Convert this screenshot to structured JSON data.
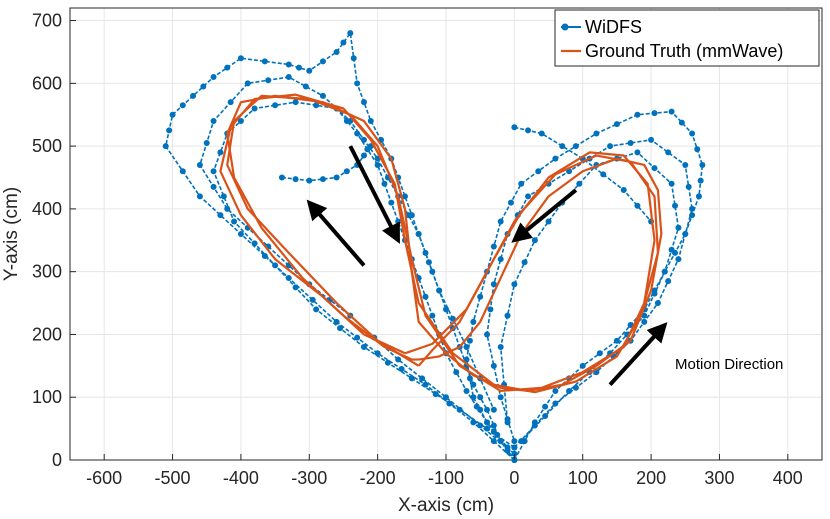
{
  "chart_data": {
    "type": "line",
    "title": "",
    "xlabel": "X-axis (cm)",
    "ylabel": "Y-axis (cm)",
    "xlim": [
      -650,
      450
    ],
    "ylim": [
      0,
      720
    ],
    "xticks": [
      -600,
      -500,
      -400,
      -300,
      -200,
      -100,
      0,
      100,
      200,
      300,
      400
    ],
    "yticks": [
      0,
      100,
      200,
      300,
      400,
      500,
      600,
      700
    ],
    "grid": true,
    "legend_position": "top-right",
    "legend": [
      "WiDFS",
      "Ground Truth (mmWave)"
    ],
    "colors": {
      "widfs": "#0072BD",
      "ground_truth": "#D95319"
    },
    "annotation": "Motion Direction",
    "series": [
      {
        "name": "WiDFS",
        "style": "dotted-marker",
        "x": [
          0,
          -60,
          -130,
          -200,
          -260,
          -330,
          -400,
          -460,
          -510,
          -500,
          -470,
          -440,
          -400,
          -330,
          -300,
          -260,
          -240,
          -230,
          -210,
          -180,
          -160,
          -140,
          -120,
          -100,
          -80,
          -60,
          -40,
          -20,
          0
        ],
        "y": [
          0,
          60,
          120,
          170,
          220,
          290,
          360,
          420,
          500,
          550,
          580,
          610,
          640,
          630,
          620,
          650,
          680,
          600,
          540,
          480,
          420,
          360,
          300,
          240,
          180,
          120,
          80,
          30,
          0
        ]
      },
      {
        "name": "WiDFS",
        "style": "dotted-marker",
        "x": [
          0,
          -80,
          -150,
          -220,
          -290,
          -350,
          -410,
          -440,
          -420,
          -380,
          -320,
          -260,
          -230,
          -200,
          -180,
          -160,
          -140,
          -120,
          -100,
          -70,
          -40,
          -10
        ],
        "y": [
          20,
          80,
          130,
          180,
          240,
          310,
          380,
          460,
          520,
          560,
          570,
          560,
          520,
          470,
          410,
          350,
          290,
          230,
          170,
          110,
          60,
          20
        ]
      },
      {
        "name": "WiDFS",
        "style": "dotted-marker",
        "x": [
          0,
          -100,
          -170,
          -240,
          -300,
          -360,
          -420,
          -460,
          -440,
          -390,
          -330,
          -280,
          -240,
          -200,
          -170,
          -140,
          -110,
          -70,
          -30
        ],
        "y": [
          10,
          100,
          160,
          230,
          280,
          340,
          400,
          470,
          540,
          600,
          610,
          580,
          540,
          480,
          420,
          360,
          270,
          180,
          80
        ]
      },
      {
        "name": "WiDFS",
        "style": "dotted-marker",
        "x": [
          -340,
          -300,
          -260,
          -230,
          -210
        ],
        "y": [
          450,
          445,
          450,
          470,
          500
        ]
      },
      {
        "name": "WiDFS",
        "style": "dotted-marker",
        "x": [
          0,
          30,
          60,
          100,
          150,
          190,
          220,
          250,
          270,
          275,
          260,
          230,
          180,
          120,
          60,
          10,
          -20,
          -40,
          -60,
          -70,
          -60,
          -40,
          -20,
          0
        ],
        "y": [
          0,
          60,
          110,
          150,
          190,
          240,
          300,
          360,
          420,
          470,
          520,
          555,
          550,
          520,
          480,
          440,
          380,
          300,
          220,
          160,
          100,
          60,
          30,
          0
        ]
      },
      {
        "name": "WiDFS",
        "style": "dotted-marker",
        "x": [
          0,
          60,
          120,
          170,
          210,
          240,
          260,
          250,
          200,
          140,
          80,
          20,
          -10,
          -30,
          -40,
          -20,
          0
        ],
        "y": [
          20,
          90,
          140,
          190,
          250,
          320,
          400,
          470,
          510,
          500,
          460,
          420,
          360,
          280,
          200,
          100,
          30
        ]
      },
      {
        "name": "WiDFS",
        "style": "dotted-marker",
        "x": [
          10,
          80,
          140,
          190,
          220,
          240,
          230,
          180,
          120,
          70,
          30,
          0,
          -20,
          -10
        ],
        "y": [
          30,
          110,
          170,
          230,
          300,
          370,
          440,
          490,
          470,
          410,
          350,
          280,
          180,
          60
        ]
      },
      {
        "name": "WiDFS",
        "style": "dotted-marker",
        "x": [
          0,
          40,
          100,
          160,
          200
        ],
        "y": [
          530,
          520,
          480,
          430,
          380
        ]
      },
      {
        "name": "Ground Truth (mmWave)",
        "style": "line",
        "x": [
          -150,
          -190,
          -250,
          -310,
          -370,
          -410,
          -420,
          -400,
          -350,
          -280,
          -220,
          -180,
          -160,
          -150,
          -140,
          -100,
          -60,
          -20,
          20,
          70,
          120,
          170,
          200,
          215,
          210,
          190,
          150,
          100,
          50,
          10,
          -20,
          -50,
          -80,
          -110,
          -140,
          -150
        ],
        "y": [
          160,
          180,
          230,
          290,
          370,
          450,
          520,
          570,
          580,
          570,
          540,
          480,
          400,
          300,
          220,
          170,
          135,
          115,
          110,
          120,
          150,
          190,
          270,
          360,
          430,
          470,
          480,
          460,
          420,
          360,
          290,
          220,
          180,
          165,
          160,
          160
        ]
      },
      {
        "name": "Ground Truth (mmWave)",
        "style": "line",
        "x": [
          -140,
          -200,
          -260,
          -330,
          -390,
          -420,
          -410,
          -370,
          -300,
          -240,
          -200,
          -170,
          -150,
          -130,
          -80,
          -20,
          40,
          100,
          160,
          190,
          205,
          195,
          160,
          110,
          50,
          0,
          -40,
          -80,
          -120,
          -140
        ],
        "y": [
          150,
          190,
          250,
          330,
          400,
          470,
          540,
          580,
          575,
          550,
          500,
          420,
          320,
          230,
          150,
          110,
          115,
          140,
          180,
          250,
          350,
          440,
          485,
          490,
          450,
          380,
          300,
          220,
          175,
          150
        ]
      },
      {
        "name": "Ground Truth (mmWave)",
        "style": "line",
        "x": [
          -160,
          -220,
          -280,
          -350,
          -400,
          -430,
          -415,
          -380,
          -320,
          -250,
          -210,
          -175,
          -160,
          -140,
          -90,
          -30,
          30,
          90,
          150,
          185,
          210,
          205,
          170,
          120,
          60,
          10,
          -30,
          -70,
          -120,
          -160
        ],
        "y": [
          170,
          200,
          260,
          320,
          390,
          460,
          530,
          575,
          582,
          560,
          510,
          440,
          350,
          250,
          170,
          120,
          108,
          125,
          165,
          230,
          330,
          420,
          475,
          485,
          455,
          395,
          320,
          240,
          185,
          170
        ]
      }
    ],
    "arrows": [
      {
        "from": [
          -240,
          500
        ],
        "to": [
          -170,
          350
        ]
      },
      {
        "from": [
          -220,
          310
        ],
        "to": [
          -300,
          410
        ]
      },
      {
        "from": [
          90,
          430
        ],
        "to": [
          0,
          350
        ]
      },
      {
        "from": [
          140,
          120
        ],
        "to": [
          220,
          215
        ]
      }
    ]
  }
}
